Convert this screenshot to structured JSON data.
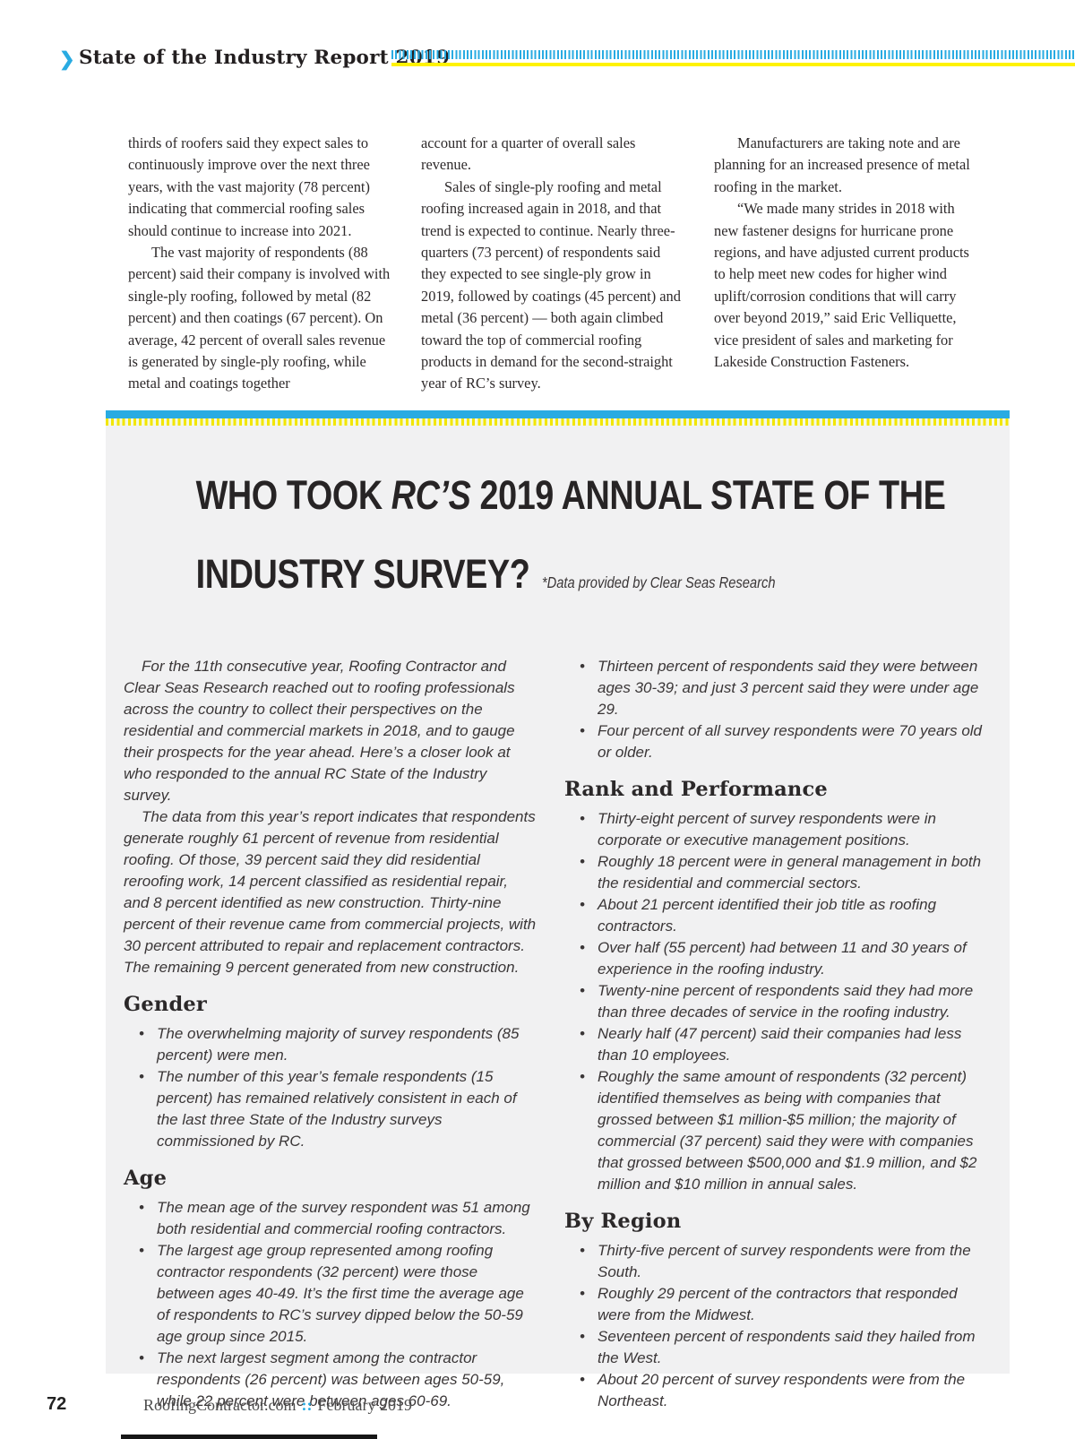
{
  "header": {
    "chevron_icon": "❯",
    "title": "State of the Industry Report 2019"
  },
  "article": {
    "col1": [
      "thirds of roofers said they expect sales to continuously improve over the next three years, with the vast majority (78 percent) indicating that commercial roofing sales should continue to increase into 2021.",
      "The vast majority of respondents (88 percent) said their company is involved with single-ply roofing, followed by metal (82 percent) and then coatings (67 percent). On average, 42 percent of overall sales revenue is generated by single-ply roofing, while metal and coatings together"
    ],
    "col2": [
      "account for a quarter of overall sales revenue.",
      "Sales of single-ply roofing and metal roofing increased again in 2018, and that trend is expected to continue. Nearly three-quarters (73 percent) of respondents said they expected to see single-ply grow in 2019, followed by coatings (45 percent) and metal (36 percent) — both again climbed toward the top of commercial roofing products in demand for the second-straight year of RC’s survey."
    ],
    "col3": [
      "Manufacturers are taking note and are planning for an increased presence of metal roofing in the market.",
      "“We made many strides in 2018 with new fastener designs for hurricane prone regions, and have adjusted current products to help meet new codes for higher wind uplift/corrosion conditions that will carry over beyond 2019,” said Eric Velliquette, vice president of sales and marketing for Lakeside Construction Fasteners."
    ]
  },
  "survey_box": {
    "title": {
      "pre": "WHO TOOK ",
      "rc": "RC’S",
      "post": " 2019 ANNUAL STATE OF THE",
      "line2": "INDUSTRY SURVEY?"
    },
    "subtitle": "*Data provided by Clear Seas Research",
    "left_column": {
      "intro": [
        "For the 11th consecutive year, Roofing Contractor and Clear Seas Research reached out to roofing professionals across the country to collect their perspectives on the residential and commercial markets in 2018, and to gauge their prospects for the year ahead. Here’s a closer look at who responded to the annual RC State of the Industry survey.",
        "The data from this year’s report indicates that respondents generate roughly 61 percent of revenue from residential roofing. Of those, 39 percent said they did residential reroofing work, 14 percent classified as residential repair, and 8 percent identified as new construction. Thirty-nine percent of their revenue came from commercial projects, with 30 percent attributed to repair and replacement contractors. The remaining 9 percent generated from new construction."
      ],
      "sections": [
        {
          "heading": "Gender",
          "bullets": [
            "The overwhelming majority of survey respondents (85 percent) were men.",
            "The number of this year’s female respondents (15 percent) has remained relatively consistent in each of the last three State of the Industry surveys commissioned by RC."
          ]
        },
        {
          "heading": "Age",
          "bullets": [
            "The mean age of the survey respondent was 51 among both residential and commercial roofing contractors.",
            "The largest age group represented among roofing contractor respondents (32 percent) were those between ages 40-49. It’s the first time the average age of respondents to RC’s survey dipped below the 50-59 age group since 2015.",
            "The next largest segment among the contractor respondents (26 percent) was between ages 50-59, while 22 percent were between ages 60-69."
          ]
        }
      ]
    },
    "right_column": {
      "lead_bullets": [
        "Thirteen percent of respondents said they were between ages 30-39; and just 3 percent said they were under age 29.",
        "Four percent of all survey respondents were 70 years old or older."
      ],
      "sections": [
        {
          "heading": "Rank and Performance",
          "bullets": [
            "Thirty-eight percent of survey respondents were in corporate or executive management positions.",
            "Roughly 18 percent were in general management in both the residential and commercial sectors.",
            "About 21 percent identified their job title as roofing contractors.",
            "Over half (55 percent) had between 11 and 30 years of experience in the roofing industry.",
            "Twenty-nine percent of respondents said they had more than three decades of service in the roofing industry.",
            "Nearly half (47 percent) said their companies had less than 10 employees.",
            "Roughly the same amount of respondents (32 percent) identified themselves as being with companies that grossed between $1 million-$5 million; the majority of commercial (37 percent) said they were with companies that grossed between $500,000 and $1.9 million, and $2 million and $10 million in annual sales."
          ]
        },
        {
          "heading": "By Region",
          "bullets": [
            "Thirty-five percent of survey respondents were from the South.",
            "Roughly 29 percent of the contractors that responded were from the Midwest.",
            "Seventeen percent of respondents said they hailed from the West.",
            "About 20 percent of survey respondents were from the Northeast."
          ]
        }
      ]
    }
  },
  "footer": {
    "page_number": "72",
    "site": "RoofingContractor.com",
    "separator": "::",
    "date": "February 2019"
  },
  "colors": {
    "accent_cyan": "#29abe2",
    "accent_yellow": "#fff200",
    "box_gray": "#f1f1f2",
    "text_dark": "#231f20"
  }
}
